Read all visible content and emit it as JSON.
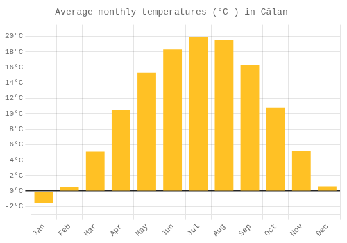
{
  "chart_data": {
    "type": "bar",
    "title": "Average monthly temperatures (°C ) in Călan",
    "categories": [
      "Jan",
      "Feb",
      "Mar",
      "Apr",
      "May",
      "Jun",
      "Jul",
      "Aug",
      "Sep",
      "Oct",
      "Nov",
      "Dec"
    ],
    "values": [
      -1.5,
      0.5,
      5.1,
      10.5,
      15.3,
      18.3,
      19.9,
      19.5,
      16.3,
      10.8,
      5.2,
      0.6
    ],
    "color": "#FFC125",
    "ylim": [
      -3.0,
      21.5
    ],
    "yticks": [
      {
        "value": -2,
        "label": "-2°C"
      },
      {
        "value": 0,
        "label": "0°C"
      },
      {
        "value": 2,
        "label": "2°C"
      },
      {
        "value": 4,
        "label": "4°C"
      },
      {
        "value": 6,
        "label": "6°C"
      },
      {
        "value": 8,
        "label": "8°C"
      },
      {
        "value": 10,
        "label": "10°C"
      },
      {
        "value": 12,
        "label": "12°C"
      },
      {
        "value": 14,
        "label": "14°C"
      },
      {
        "value": 16,
        "label": "16°C"
      },
      {
        "value": 18,
        "label": "18°C"
      },
      {
        "value": 20,
        "label": "20°C"
      }
    ],
    "grid": true
  }
}
